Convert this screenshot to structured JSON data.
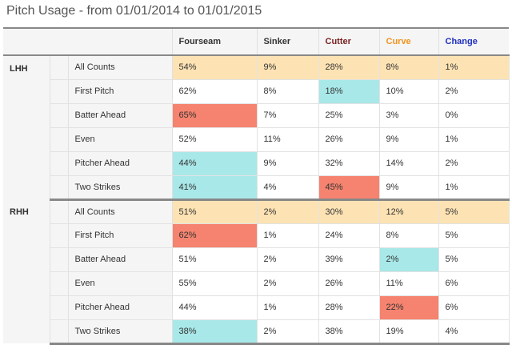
{
  "title": "Pitch Usage - from 01/01/2014 to 01/01/2015",
  "columns": [
    {
      "label": "Fourseam",
      "color": "#333333"
    },
    {
      "label": "Sinker",
      "color": "#333333"
    },
    {
      "label": "Cutter",
      "color": "#7a1f1f"
    },
    {
      "label": "Curve",
      "color": "#f0931e"
    },
    {
      "label": "Change",
      "color": "#1f2fbf"
    }
  ],
  "highlight_colors": {
    "summary": "#fde3b4",
    "high": "#f5836f",
    "low": "#a9e8e8"
  },
  "groups": [
    {
      "name": "LHH",
      "rows": [
        {
          "label": "All Counts",
          "summary": true,
          "values": [
            "54%",
            "9%",
            "28%",
            "8%",
            "1%"
          ],
          "highlight": [
            "",
            "",
            "",
            "",
            ""
          ]
        },
        {
          "label": "First Pitch",
          "summary": false,
          "values": [
            "62%",
            "8%",
            "18%",
            "10%",
            "2%"
          ],
          "highlight": [
            "",
            "",
            "low",
            "",
            ""
          ]
        },
        {
          "label": "Batter Ahead",
          "summary": false,
          "values": [
            "65%",
            "7%",
            "25%",
            "3%",
            "0%"
          ],
          "highlight": [
            "high",
            "",
            "",
            "",
            ""
          ]
        },
        {
          "label": "Even",
          "summary": false,
          "values": [
            "52%",
            "11%",
            "26%",
            "9%",
            "1%"
          ],
          "highlight": [
            "",
            "",
            "",
            "",
            ""
          ]
        },
        {
          "label": "Pitcher Ahead",
          "summary": false,
          "values": [
            "44%",
            "9%",
            "32%",
            "14%",
            "2%"
          ],
          "highlight": [
            "low",
            "",
            "",
            "",
            ""
          ]
        },
        {
          "label": "Two Strikes",
          "summary": false,
          "values": [
            "41%",
            "4%",
            "45%",
            "9%",
            "1%"
          ],
          "highlight": [
            "low",
            "",
            "high",
            "",
            ""
          ]
        }
      ]
    },
    {
      "name": "RHH",
      "rows": [
        {
          "label": "All Counts",
          "summary": true,
          "values": [
            "51%",
            "2%",
            "30%",
            "12%",
            "5%"
          ],
          "highlight": [
            "",
            "",
            "",
            "",
            ""
          ]
        },
        {
          "label": "First Pitch",
          "summary": false,
          "values": [
            "62%",
            "1%",
            "24%",
            "8%",
            "5%"
          ],
          "highlight": [
            "high",
            "",
            "",
            "",
            ""
          ]
        },
        {
          "label": "Batter Ahead",
          "summary": false,
          "values": [
            "51%",
            "2%",
            "39%",
            "2%",
            "5%"
          ],
          "highlight": [
            "",
            "",
            "",
            "low",
            ""
          ]
        },
        {
          "label": "Even",
          "summary": false,
          "values": [
            "55%",
            "2%",
            "26%",
            "11%",
            "6%"
          ],
          "highlight": [
            "",
            "",
            "",
            "",
            ""
          ]
        },
        {
          "label": "Pitcher Ahead",
          "summary": false,
          "values": [
            "44%",
            "1%",
            "28%",
            "22%",
            "6%"
          ],
          "highlight": [
            "",
            "",
            "",
            "high",
            ""
          ]
        },
        {
          "label": "Two Strikes",
          "summary": false,
          "values": [
            "38%",
            "2%",
            "38%",
            "19%",
            "4%"
          ],
          "highlight": [
            "low",
            "",
            "",
            "",
            ""
          ]
        }
      ]
    }
  ]
}
